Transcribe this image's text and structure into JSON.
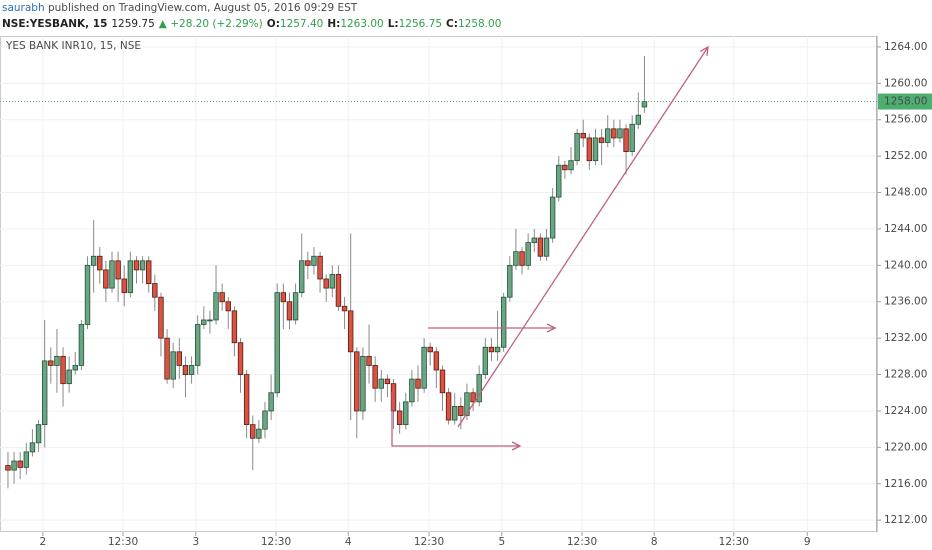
{
  "header": {
    "user": "saurabh",
    "published": " published on TradingView.com, August 05, 2016 09:29 EST",
    "symbol": "NSE:YESBANK, 15",
    "price": "1259.75",
    "change": "▲ +28.20 (+2.29%)",
    "ohlc": [
      {
        "label": "O:",
        "value": "1257.40"
      },
      {
        "label": "H:",
        "value": "1263.00"
      },
      {
        "label": "L:",
        "value": "1256.75"
      },
      {
        "label": "C:",
        "value": "1258.00"
      }
    ]
  },
  "chart_data": {
    "type": "candlestick",
    "title": "YES BANK INR10, 15, NSE",
    "up_color": "#6ba583",
    "up_border": "#225437",
    "down_color": "#d75442",
    "down_border": "#5b1a13",
    "wick_color": "#8a8a8a",
    "grid": true,
    "open": [
      1218,
      1217.5,
      1218.5,
      1217.8,
      1219.5,
      1220.5,
      1222.5,
      1229.5,
      1229,
      1230,
      1227,
      1228.5,
      1229,
      1233.5,
      1240,
      1241,
      1239.5,
      1237.5,
      1240.5,
      1238.5,
      1237,
      1240.5,
      1239.5,
      1240.5,
      1238,
      1236.5,
      1232,
      1227.5,
      1230.5,
      1229,
      1228,
      1229,
      1233.5,
      1234,
      1234,
      1237,
      1236,
      1235,
      1231.5,
      1228,
      1222.5,
      1221,
      1222,
      1224,
      1226,
      1237,
      1236,
      1234,
      1237,
      1240.5,
      1240,
      1241,
      1238.5,
      1237.5,
      1239,
      1235.5,
      1235,
      1230.5,
      1224,
      1230,
      1229,
      1226.5,
      1227.5,
      1227,
      1224,
      1222.5,
      1225,
      1227.5,
      1226.5,
      1231,
      1230.5,
      1228.5,
      1226,
      1223,
      1224.5,
      1223.5,
      1226,
      1225,
      1228,
      1231,
      1230.5,
      1231,
      1236.5,
      1240,
      1241.5,
      1240,
      1242.5,
      1243,
      1241,
      1243,
      1247.5,
      1251,
      1250.5,
      1251.5,
      1254.5,
      1254,
      1251.5,
      1254,
      1253.5,
      1255,
      1254,
      1255,
      1252.5,
      1255.5,
      1257.4
    ],
    "high": [
      1219.5,
      1219.5,
      1219.5,
      1220.5,
      1222,
      1223,
      1234,
      1231,
      1233,
      1231,
      1230,
      1230.5,
      1234,
      1241,
      1245,
      1242,
      1240.5,
      1241.5,
      1241.5,
      1240,
      1241.5,
      1241,
      1241,
      1241,
      1239,
      1237,
      1233,
      1231.5,
      1232,
      1230,
      1230,
      1234.5,
      1235.5,
      1235,
      1240,
      1238,
      1236.5,
      1235.5,
      1232,
      1228.5,
      1223.5,
      1223,
      1225,
      1228,
      1238,
      1238,
      1237,
      1238,
      1243.5,
      1241.5,
      1242,
      1241.5,
      1239,
      1240,
      1240,
      1236.5,
      1243.5,
      1231,
      1231,
      1233.5,
      1230,
      1228.5,
      1228,
      1227.5,
      1225,
      1226,
      1228.5,
      1229,
      1232,
      1231.5,
      1231,
      1229,
      1226.5,
      1226,
      1225.5,
      1227,
      1226.5,
      1229,
      1232,
      1232,
      1235,
      1237,
      1241,
      1244,
      1242,
      1243.5,
      1244,
      1243.5,
      1244,
      1248.5,
      1252,
      1251.5,
      1253,
      1255,
      1256,
      1254.5,
      1255,
      1255,
      1256.5,
      1256,
      1256,
      1255.5,
      1256.5,
      1259,
      1263
    ],
    "low": [
      1215.5,
      1216,
      1216.5,
      1217,
      1219,
      1219.5,
      1220,
      1227,
      1226,
      1224.5,
      1226,
      1228,
      1228.5,
      1233,
      1237,
      1238,
      1236,
      1237,
      1236,
      1235.5,
      1236.5,
      1238,
      1238,
      1237,
      1235,
      1230,
      1227,
      1226.5,
      1227.5,
      1225.5,
      1227,
      1228,
      1233,
      1232.5,
      1233.5,
      1235,
      1233,
      1230,
      1226,
      1221,
      1217.5,
      1220.5,
      1221,
      1223,
      1225.5,
      1233,
      1233,
      1233.5,
      1236.5,
      1238.5,
      1239,
      1237,
      1236,
      1236.5,
      1235,
      1233,
      1223,
      1221,
      1223,
      1227,
      1225,
      1225,
      1225.5,
      1222,
      1221.5,
      1222,
      1224.5,
      1225,
      1226,
      1229,
      1226.5,
      1224,
      1222.5,
      1222.5,
      1222,
      1223,
      1224,
      1224.5,
      1227.5,
      1229.5,
      1229.5,
      1230.5,
      1236,
      1239.5,
      1239,
      1239.5,
      1241.5,
      1240.5,
      1240.5,
      1242.5,
      1247,
      1249.5,
      1250,
      1251,
      1253,
      1250.5,
      1251,
      1251,
      1253,
      1253,
      1253.5,
      1250,
      1252,
      1255,
      1256.75
    ],
    "close": [
      1217.5,
      1218.5,
      1217.8,
      1219.5,
      1220.5,
      1222.5,
      1229.5,
      1229,
      1230,
      1227,
      1228.5,
      1229,
      1233.5,
      1240,
      1241,
      1239.5,
      1237.5,
      1240.5,
      1238.5,
      1237,
      1240.5,
      1239.5,
      1240.5,
      1238,
      1236.5,
      1232,
      1227.5,
      1230.5,
      1229,
      1228,
      1229,
      1233.5,
      1234,
      1234,
      1237,
      1236,
      1235,
      1231.5,
      1228,
      1222.5,
      1221,
      1222,
      1224,
      1226,
      1237,
      1236,
      1234,
      1237,
      1240.5,
      1240,
      1241,
      1238.5,
      1237.5,
      1239,
      1235.5,
      1235,
      1230.5,
      1224,
      1230,
      1229,
      1226.5,
      1227.5,
      1227,
      1224,
      1222.5,
      1225,
      1227.5,
      1226.5,
      1231,
      1230.5,
      1228.5,
      1226,
      1223,
      1224.5,
      1223.5,
      1226,
      1225,
      1228,
      1231,
      1230.5,
      1231,
      1236.5,
      1240,
      1241.5,
      1240,
      1242.5,
      1243,
      1241,
      1243,
      1247.5,
      1251,
      1250.5,
      1251.5,
      1254.5,
      1254,
      1251.5,
      1254,
      1253.5,
      1255,
      1254,
      1255,
      1252.5,
      1255.5,
      1256.5,
      1258
    ],
    "last_price": {
      "value": 1258,
      "label": "1258.00"
    },
    "last_color": "#4caf6f",
    "xlim": [
      -1.3,
      142
    ],
    "xticks": [
      {
        "value": 5.7,
        "label": "2"
      },
      {
        "value": 18.8,
        "label": "12:30"
      },
      {
        "value": 30.7,
        "label": "3"
      },
      {
        "value": 43.8,
        "label": "12:30"
      },
      {
        "value": 55.6,
        "label": "4"
      },
      {
        "value": 68.8,
        "label": "12:30"
      },
      {
        "value": 80.7,
        "label": "5"
      },
      {
        "value": 93.8,
        "label": "12:30"
      },
      {
        "value": 105.6,
        "label": "8"
      },
      {
        "value": 118.6,
        "label": "12:30"
      },
      {
        "value": 130.6,
        "label": "9"
      }
    ],
    "ylim": [
      1210.7,
      1265.2
    ],
    "yticks": [
      {
        "value": 1212,
        "label": "1212.00"
      },
      {
        "value": 1216,
        "label": "1216.00"
      },
      {
        "value": 1220,
        "label": "1220.00"
      },
      {
        "value": 1224,
        "label": "1224.00"
      },
      {
        "value": 1228,
        "label": "1228.00"
      },
      {
        "value": 1232,
        "label": "1232.00"
      },
      {
        "value": 1236,
        "label": "1236.00"
      },
      {
        "value": 1240,
        "label": "1240.00"
      },
      {
        "value": 1244,
        "label": "1244.00"
      },
      {
        "value": 1248,
        "label": "1248.00"
      },
      {
        "value": 1252,
        "label": "1252.00"
      },
      {
        "value": 1256,
        "label": "1256.00"
      },
      {
        "value": 1260,
        "label": "1260.00"
      },
      {
        "value": 1264,
        "label": "1264.00"
      }
    ]
  }
}
